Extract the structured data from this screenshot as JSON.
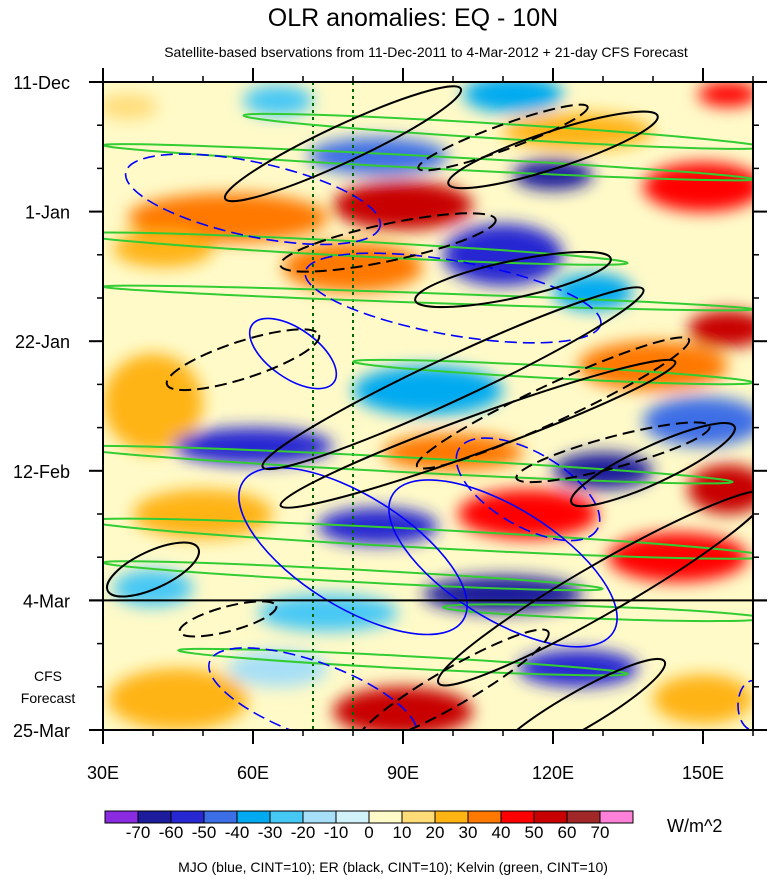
{
  "chart_data": {
    "type": "heatmap",
    "title": "OLR anomalies: EQ - 10N",
    "subtitle": "Satellite-based bservations from 11-Dec-2011 to 4-Mar-2012 + 21-day CFS Forecast",
    "x_axis": {
      "min": 30,
      "max": 160,
      "ticks": [
        30,
        60,
        90,
        120,
        150
      ],
      "tick_labels": [
        "30E",
        "60E",
        "90E",
        "120E",
        "150E"
      ],
      "minor_step": 10
    },
    "y_axis": {
      "range_days": [
        0,
        105
      ],
      "ticks": [
        0,
        21,
        42,
        63,
        84,
        105
      ],
      "tick_labels": [
        "11-Dec",
        "1-Jan",
        "22-Jan",
        "12-Feb",
        "4-Mar",
        "25-Mar"
      ],
      "minor_step_days": 7
    },
    "observation_end_day": 84,
    "forecast_label": [
      "CFS",
      "Forecast"
    ],
    "reference_longitudes": [
      72,
      80
    ],
    "colorbar": {
      "levels": [
        -70,
        -60,
        -50,
        -40,
        -30,
        -20,
        -10,
        0,
        10,
        20,
        30,
        40,
        50,
        60,
        70
      ],
      "labels": [
        "-70",
        "-60",
        "-50",
        "-40",
        "-30",
        "-20",
        "-10",
        "0",
        "10",
        "20",
        "30",
        "40",
        "50",
        "60",
        "70"
      ],
      "colors": [
        "#8a2be2",
        "#1c1c9c",
        "#2828d2",
        "#3c6ee6",
        "#00aaf0",
        "#46c8f5",
        "#a6dff7",
        "#d2f2fa",
        "#fffac8",
        "#ffdc78",
        "#ffb414",
        "#ff7800",
        "#ff0000",
        "#c80000",
        "#a02828",
        "#ff80d8"
      ],
      "units": "W/m^2"
    },
    "olr_anomaly_features": [
      {
        "lon": 112,
        "day": 2,
        "rx": 10,
        "ry": 3,
        "value": -40
      },
      {
        "lon": 65,
        "day": 3,
        "rx": 7,
        "ry": 2.5,
        "value": -30
      },
      {
        "lon": 155,
        "day": 2,
        "rx": 6,
        "ry": 2,
        "value": 45
      },
      {
        "lon": 35,
        "day": 4,
        "rx": 6,
        "ry": 2,
        "value": 15
      },
      {
        "lon": 125,
        "day": 8,
        "rx": 15,
        "ry": 3,
        "value": 25
      },
      {
        "lon": 85,
        "day": 12,
        "rx": 14,
        "ry": 3,
        "value": -50
      },
      {
        "lon": 120,
        "day": 15,
        "rx": 8,
        "ry": 2.5,
        "value": -70
      },
      {
        "lon": 150,
        "day": 17,
        "rx": 12,
        "ry": 4,
        "value": 45
      },
      {
        "lon": 90,
        "day": 20,
        "rx": 14,
        "ry": 4,
        "value": 55
      },
      {
        "lon": 55,
        "day": 22,
        "rx": 20,
        "ry": 4,
        "value": 30
      },
      {
        "lon": 110,
        "day": 28,
        "rx": 12,
        "ry": 5,
        "value": -55
      },
      {
        "lon": 80,
        "day": 30,
        "rx": 14,
        "ry": 4,
        "value": 35
      },
      {
        "lon": 42,
        "day": 27,
        "rx": 10,
        "ry": 3,
        "value": 20
      },
      {
        "lon": 128,
        "day": 34,
        "rx": 8,
        "ry": 3,
        "value": -40
      },
      {
        "lon": 155,
        "day": 40,
        "rx": 8,
        "ry": 3,
        "value": 50
      },
      {
        "lon": 140,
        "day": 46,
        "rx": 15,
        "ry": 4,
        "value": 35
      },
      {
        "lon": 95,
        "day": 50,
        "rx": 15,
        "ry": 4,
        "value": -35
      },
      {
        "lon": 40,
        "day": 52,
        "rx": 10,
        "ry": 8,
        "value": 25
      },
      {
        "lon": 60,
        "day": 59,
        "rx": 16,
        "ry": 3,
        "value": -60
      },
      {
        "lon": 100,
        "day": 60,
        "rx": 14,
        "ry": 3,
        "value": 35
      },
      {
        "lon": 150,
        "day": 55,
        "rx": 12,
        "ry": 4,
        "value": -45
      },
      {
        "lon": 130,
        "day": 63,
        "rx": 10,
        "ry": 3,
        "value": -65
      },
      {
        "lon": 155,
        "day": 66,
        "rx": 8,
        "ry": 4,
        "value": 50
      },
      {
        "lon": 85,
        "day": 72,
        "rx": 12,
        "ry": 3,
        "value": -55
      },
      {
        "lon": 115,
        "day": 70,
        "rx": 14,
        "ry": 4,
        "value": 40
      },
      {
        "lon": 50,
        "day": 70,
        "rx": 14,
        "ry": 4,
        "value": 20
      },
      {
        "lon": 145,
        "day": 77,
        "rx": 14,
        "ry": 4,
        "value": 40
      },
      {
        "lon": 110,
        "day": 83,
        "rx": 16,
        "ry": 3,
        "value": -65
      },
      {
        "lon": 40,
        "day": 82,
        "rx": 8,
        "ry": 3,
        "value": -30
      },
      {
        "lon": 75,
        "day": 86,
        "rx": 14,
        "ry": 3,
        "value": -25
      },
      {
        "lon": 125,
        "day": 95,
        "rx": 12,
        "ry": 3,
        "value": -55
      },
      {
        "lon": 90,
        "day": 102,
        "rx": 14,
        "ry": 4,
        "value": 50
      },
      {
        "lon": 45,
        "day": 100,
        "rx": 14,
        "ry": 5,
        "value": 20
      },
      {
        "lon": 150,
        "day": 100,
        "rx": 10,
        "ry": 4,
        "value": 25
      },
      {
        "lon": 65,
        "day": 95,
        "rx": 10,
        "ry": 3,
        "value": -20
      }
    ],
    "mjo_contours": [
      {
        "lon": 60,
        "day": 19,
        "rx": 26,
        "ry": 6,
        "angle": 12,
        "sign": "negative"
      },
      {
        "lon": 68,
        "day": 44,
        "rx": 10,
        "ry": 4,
        "angle": 35,
        "sign": "positive"
      },
      {
        "lon": 80,
        "day": 76,
        "rx": 26,
        "ry": 9,
        "angle": 32,
        "sign": "positive"
      },
      {
        "lon": 110,
        "day": 78,
        "rx": 26,
        "ry": 9,
        "angle": 32,
        "sign": "positive"
      },
      {
        "lon": 100,
        "day": 35,
        "rx": 30,
        "ry": 6,
        "angle": 10,
        "sign": "negative"
      },
      {
        "lon": 115,
        "day": 66,
        "rx": 16,
        "ry": 6,
        "angle": 30,
        "sign": "negative"
      },
      {
        "lon": 72,
        "day": 100,
        "rx": 22,
        "ry": 6,
        "angle": 20,
        "sign": "negative"
      },
      {
        "lon": 160,
        "day": 101,
        "rx": 3,
        "ry": 4,
        "angle": 0,
        "sign": "negative"
      }
    ],
    "er_contours": [
      {
        "lon": 78,
        "day": 10,
        "rx": 26,
        "ry": 3,
        "angle": -25,
        "sign": "positive"
      },
      {
        "lon": 120,
        "day": 11,
        "rx": 22,
        "ry": 3,
        "angle": -18,
        "sign": "positive"
      },
      {
        "lon": 87,
        "day": 26,
        "rx": 22,
        "ry": 3,
        "angle": -12,
        "sign": "negative"
      },
      {
        "lon": 110,
        "day": 9,
        "rx": 18,
        "ry": 2,
        "angle": -20,
        "sign": "negative"
      },
      {
        "lon": 112,
        "day": 32,
        "rx": 20,
        "ry": 3,
        "angle": -12,
        "sign": "positive"
      },
      {
        "lon": 58,
        "day": 45,
        "rx": 16,
        "ry": 3,
        "angle": -18,
        "sign": "negative"
      },
      {
        "lon": 100,
        "day": 48,
        "rx": 42,
        "ry": 3.5,
        "angle": -25,
        "sign": "positive"
      },
      {
        "lon": 120,
        "day": 52,
        "rx": 30,
        "ry": 3,
        "angle": -25,
        "sign": "negative"
      },
      {
        "lon": 105,
        "day": 57,
        "rx": 42,
        "ry": 3,
        "angle": -20,
        "sign": "positive"
      },
      {
        "lon": 140,
        "day": 62,
        "rx": 18,
        "ry": 3,
        "angle": -25,
        "sign": "positive"
      },
      {
        "lon": 132,
        "day": 60,
        "rx": 20,
        "ry": 2.5,
        "angle": -15,
        "sign": "negative"
      },
      {
        "lon": 40,
        "day": 79,
        "rx": 10,
        "ry": 3,
        "angle": -25,
        "sign": "positive"
      },
      {
        "lon": 55,
        "day": 87,
        "rx": 10,
        "ry": 2,
        "angle": -15,
        "sign": "negative"
      },
      {
        "lon": 130,
        "day": 82,
        "rx": 38,
        "ry": 4,
        "angle": -30,
        "sign": "positive"
      },
      {
        "lon": 100,
        "day": 98,
        "rx": 22,
        "ry": 3,
        "angle": -30,
        "sign": "negative"
      },
      {
        "lon": 125,
        "day": 102,
        "rx": 20,
        "ry": 3,
        "angle": -30,
        "sign": "positive"
      }
    ],
    "kelvin_contours": [
      {
        "lon": 110,
        "day": 8,
        "rx": 52,
        "ry": 1.2,
        "angle": 3.5,
        "sign": "positive"
      },
      {
        "lon": 95,
        "day": 13,
        "rx": 65,
        "ry": 1,
        "angle": 3,
        "sign": "positive"
      },
      {
        "lon": 80,
        "day": 27,
        "rx": 55,
        "ry": 1.2,
        "angle": 3,
        "sign": "positive"
      },
      {
        "lon": 95,
        "day": 35,
        "rx": 65,
        "ry": 0.8,
        "angle": 2,
        "sign": "positive"
      },
      {
        "lon": 120,
        "day": 47,
        "rx": 40,
        "ry": 1,
        "angle": 3,
        "sign": "positive"
      },
      {
        "lon": 90,
        "day": 62,
        "rx": 66,
        "ry": 1.2,
        "angle": 3,
        "sign": "positive"
      },
      {
        "lon": 95,
        "day": 74,
        "rx": 68,
        "ry": 1.5,
        "angle": 3,
        "sign": "positive"
      },
      {
        "lon": 80,
        "day": 80,
        "rx": 50,
        "ry": 1,
        "angle": 3,
        "sign": "positive"
      },
      {
        "lon": 90,
        "day": 94,
        "rx": 45,
        "ry": 1,
        "angle": 3,
        "sign": "positive"
      },
      {
        "lon": 130,
        "day": 86,
        "rx": 32,
        "ry": 1,
        "angle": 2,
        "sign": "positive"
      }
    ],
    "legend_text": "MJO (blue, CINT=10); ER (black, CINT=10); Kelvin (green, CINT=10)",
    "contour_colors": {
      "mjo": "#0000ff",
      "er": "#000000",
      "kelvin": "#33cc33",
      "reference_lines": "#006600"
    }
  }
}
